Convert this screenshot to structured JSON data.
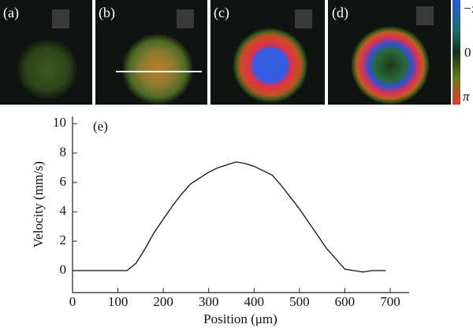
{
  "panels": {
    "labels": [
      "(a)",
      "(b)",
      "(c)",
      "(d)"
    ],
    "colorbar": [
      "−π",
      "0",
      "π"
    ]
  },
  "chart_data": {
    "type": "line",
    "annotation": "(e)",
    "x_label": "Position (μm)",
    "y_label": "Velocity (mm/s)",
    "x": [
      0,
      20,
      40,
      60,
      80,
      100,
      120,
      140,
      160,
      180,
      200,
      220,
      240,
      260,
      280,
      300,
      320,
      340,
      360,
      380,
      400,
      420,
      440,
      460,
      480,
      500,
      520,
      540,
      560,
      580,
      600,
      620,
      640,
      660,
      690
    ],
    "series": [
      {
        "name": "velocity",
        "color": "#111111",
        "values": [
          0,
          0,
          0,
          0,
          0,
          0,
          0,
          0.5,
          1.5,
          2.6,
          3.5,
          4.4,
          5.2,
          5.9,
          6.3,
          6.7,
          7.0,
          7.2,
          7.4,
          7.3,
          7.1,
          6.8,
          6.5,
          5.8,
          5.0,
          4.2,
          3.3,
          2.4,
          1.5,
          0.8,
          0.1,
          0,
          -0.1,
          0,
          0
        ]
      }
    ],
    "xlim": [
      0,
      740
    ],
    "ylim": [
      -1.5,
      10.5
    ],
    "xticks": [
      0,
      100,
      200,
      300,
      400,
      500,
      600,
      700
    ],
    "yticks": [
      0,
      2,
      4,
      6,
      8,
      10
    ]
  }
}
